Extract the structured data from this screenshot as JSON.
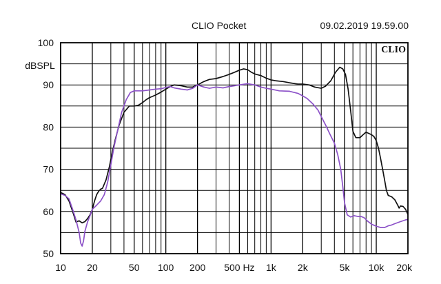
{
  "header": {
    "app_title": "CLIO Pocket",
    "timestamp": "09.02.2019 19.59.00"
  },
  "logo_text": "CLIO",
  "chart_data": {
    "type": "line",
    "title": "",
    "xlabel": "",
    "ylabel": "dBSPL",
    "xscale": "log",
    "xlim": [
      10,
      20000
    ],
    "ylim": [
      50,
      100
    ],
    "grid": true,
    "legend": "none",
    "x_tick_values": [
      10,
      20,
      50,
      100,
      200,
      500,
      1000,
      2000,
      5000,
      10000,
      20000
    ],
    "x_tick_labels": [
      "10",
      "20",
      "50",
      "100",
      "200",
      "500 Hz",
      "1k",
      "2k",
      "5k",
      "10k",
      "20k"
    ],
    "y_tick_values": [
      50,
      60,
      70,
      80,
      90,
      100
    ],
    "y_tick_labels": [
      "50",
      "60",
      "70",
      "80",
      "90",
      "100"
    ],
    "series": [
      {
        "color": "#111111",
        "points": [
          [
            10,
            64.5
          ],
          [
            11,
            64
          ],
          [
            12,
            62.5
          ],
          [
            13,
            60
          ],
          [
            14,
            57.5
          ],
          [
            15,
            57.8
          ],
          [
            16,
            57.3
          ],
          [
            17,
            57.6
          ],
          [
            18,
            58.3
          ],
          [
            19,
            59.2
          ],
          [
            20,
            60.5
          ],
          [
            21,
            62.5
          ],
          [
            22,
            64
          ],
          [
            23,
            64.8
          ],
          [
            24,
            65.3
          ],
          [
            25,
            65.5
          ],
          [
            27,
            67.5
          ],
          [
            29,
            70.5
          ],
          [
            31,
            74
          ],
          [
            33,
            77
          ],
          [
            36,
            80.5
          ],
          [
            40,
            83.5
          ],
          [
            45,
            85
          ],
          [
            50,
            85
          ],
          [
            55,
            85.2
          ],
          [
            60,
            85.8
          ],
          [
            65,
            86.5
          ],
          [
            70,
            87
          ],
          [
            80,
            87.6
          ],
          [
            90,
            88.3
          ],
          [
            100,
            89
          ],
          [
            110,
            89.6
          ],
          [
            120,
            90
          ],
          [
            140,
            89.8
          ],
          [
            160,
            89.5
          ],
          [
            180,
            89.5
          ],
          [
            200,
            90
          ],
          [
            230,
            90.8
          ],
          [
            260,
            91.3
          ],
          [
            300,
            91.5
          ],
          [
            350,
            92
          ],
          [
            400,
            92.5
          ],
          [
            450,
            93
          ],
          [
            500,
            93.5
          ],
          [
            550,
            93.8
          ],
          [
            600,
            93.6
          ],
          [
            650,
            93
          ],
          [
            700,
            92.6
          ],
          [
            800,
            92.2
          ],
          [
            900,
            91.6
          ],
          [
            1000,
            91.2
          ],
          [
            1100,
            91
          ],
          [
            1300,
            90.8
          ],
          [
            1500,
            90.5
          ],
          [
            1800,
            90.2
          ],
          [
            2000,
            90.2
          ],
          [
            2300,
            90
          ],
          [
            2600,
            89.5
          ],
          [
            3000,
            89.2
          ],
          [
            3300,
            89.7
          ],
          [
            3700,
            91
          ],
          [
            4100,
            93
          ],
          [
            4500,
            94.2
          ],
          [
            4800,
            93.8
          ],
          [
            5100,
            92.5
          ],
          [
            5400,
            89
          ],
          [
            5700,
            84
          ],
          [
            6000,
            79
          ],
          [
            6400,
            77.5
          ],
          [
            7000,
            77.5
          ],
          [
            7500,
            78.2
          ],
          [
            8000,
            78.8
          ],
          [
            8500,
            78.5
          ],
          [
            9000,
            78.2
          ],
          [
            9500,
            77.8
          ],
          [
            10000,
            76.8
          ],
          [
            10500,
            75
          ],
          [
            11000,
            72.5
          ],
          [
            11500,
            70
          ],
          [
            12000,
            67.5
          ],
          [
            12500,
            65
          ],
          [
            13000,
            63.8
          ],
          [
            14000,
            63.5
          ],
          [
            15000,
            62.8
          ],
          [
            16000,
            61.5
          ],
          [
            16500,
            60.8
          ],
          [
            17000,
            61.3
          ],
          [
            18000,
            61.2
          ],
          [
            19000,
            60.5
          ],
          [
            20000,
            59.3
          ]
        ]
      },
      {
        "color": "#8c52c8",
        "points": [
          [
            10,
            64.2
          ],
          [
            11,
            63.8
          ],
          [
            12,
            63
          ],
          [
            13,
            60.5
          ],
          [
            14,
            58
          ],
          [
            15,
            55
          ],
          [
            15.5,
            52.5
          ],
          [
            16,
            51.8
          ],
          [
            16.5,
            53
          ],
          [
            17,
            55.3
          ],
          [
            18,
            57.5
          ],
          [
            19,
            59
          ],
          [
            20,
            60.5
          ],
          [
            22,
            61.5
          ],
          [
            24,
            62.5
          ],
          [
            26,
            64
          ],
          [
            28,
            67
          ],
          [
            30,
            71
          ],
          [
            32,
            75
          ],
          [
            35,
            79.5
          ],
          [
            38,
            83.5
          ],
          [
            42,
            86.5
          ],
          [
            46,
            88.2
          ],
          [
            50,
            88.6
          ],
          [
            55,
            88.6
          ],
          [
            60,
            88.6
          ],
          [
            70,
            88.8
          ],
          [
            80,
            89
          ],
          [
            90,
            89.1
          ],
          [
            100,
            89.4
          ],
          [
            110,
            89.6
          ],
          [
            120,
            89.3
          ],
          [
            140,
            89
          ],
          [
            160,
            88.8
          ],
          [
            180,
            89.2
          ],
          [
            200,
            90
          ],
          [
            230,
            89.5
          ],
          [
            260,
            89.2
          ],
          [
            300,
            89.5
          ],
          [
            350,
            89.3
          ],
          [
            400,
            89.6
          ],
          [
            450,
            89.8
          ],
          [
            500,
            90
          ],
          [
            600,
            90.3
          ],
          [
            700,
            90
          ],
          [
            800,
            89.5
          ],
          [
            900,
            89.2
          ],
          [
            1000,
            89
          ],
          [
            1200,
            88.6
          ],
          [
            1500,
            88.5
          ],
          [
            1800,
            88
          ],
          [
            2000,
            87.4
          ],
          [
            2200,
            86.8
          ],
          [
            2500,
            85.5
          ],
          [
            2800,
            84
          ],
          [
            3000,
            82.5
          ],
          [
            3300,
            80.5
          ],
          [
            3600,
            78.5
          ],
          [
            4000,
            76.2
          ],
          [
            4300,
            73.5
          ],
          [
            4600,
            70
          ],
          [
            4800,
            66
          ],
          [
            5000,
            62
          ],
          [
            5300,
            59.2
          ],
          [
            5700,
            58.7
          ],
          [
            6200,
            59
          ],
          [
            6700,
            58.8
          ],
          [
            7200,
            58.8
          ],
          [
            7700,
            58.5
          ],
          [
            8200,
            57.8
          ],
          [
            9000,
            57
          ],
          [
            10000,
            56.5
          ],
          [
            11000,
            56.2
          ],
          [
            12000,
            56.2
          ],
          [
            13000,
            56.6
          ],
          [
            14000,
            56.8
          ],
          [
            15000,
            57.1
          ],
          [
            17000,
            57.6
          ],
          [
            19000,
            58
          ],
          [
            20000,
            58.1
          ]
        ]
      }
    ]
  }
}
